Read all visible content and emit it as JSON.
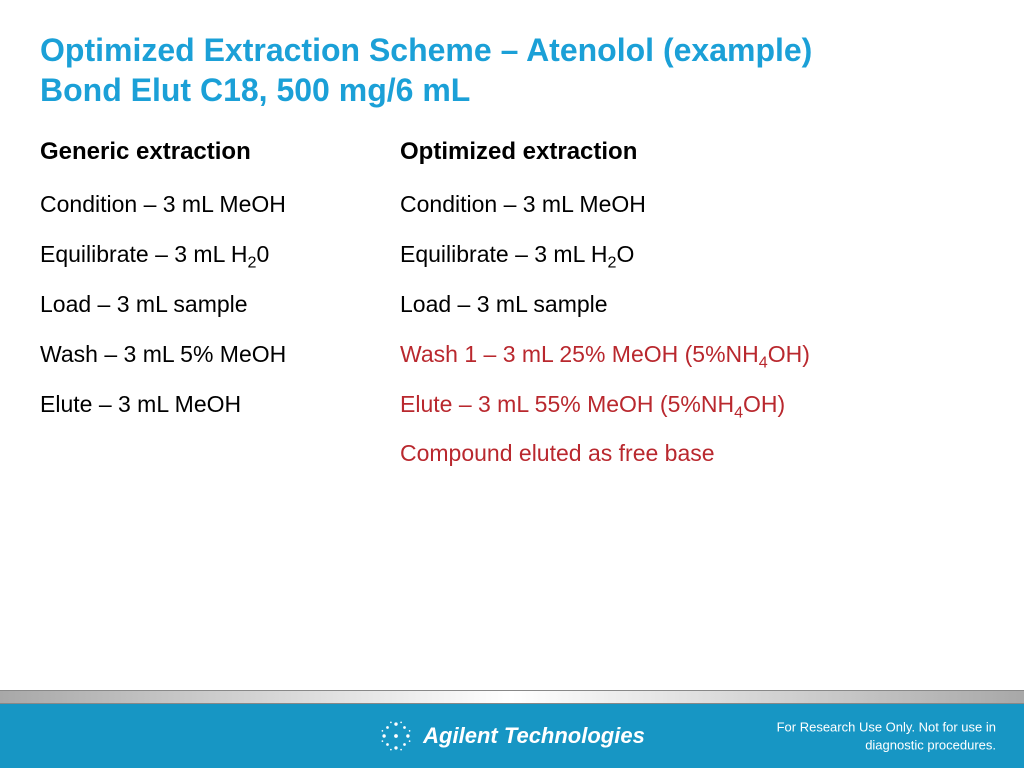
{
  "title_line1": "Optimized Extraction Scheme – Atenolol (example)",
  "title_line2": "Bond Elut C18, 500 mg/6 mL",
  "columns": {
    "left": {
      "heading": "Generic extraction",
      "steps": [
        {
          "parts": [
            "Condition – 3 mL MeOH"
          ],
          "highlight": false
        },
        {
          "parts": [
            "Equilibrate – 3 mL H",
            {
              "sub": "2"
            },
            "0"
          ],
          "highlight": false
        },
        {
          "parts": [
            "Load – 3 mL sample"
          ],
          "highlight": false
        },
        {
          "parts": [
            "Wash – 3 mL 5% MeOH"
          ],
          "highlight": false
        },
        {
          "parts": [
            "Elute – 3 mL MeOH"
          ],
          "highlight": false
        }
      ]
    },
    "right": {
      "heading": "Optimized extraction",
      "steps": [
        {
          "parts": [
            "Condition – 3 mL MeOH"
          ],
          "highlight": false
        },
        {
          "parts": [
            "Equilibrate – 3 mL H",
            {
              "sub": "2"
            },
            "O"
          ],
          "highlight": false
        },
        {
          "parts": [
            "Load – 3 mL sample"
          ],
          "highlight": false
        },
        {
          "parts": [
            "Wash 1 – 3 mL 25% MeOH (5%NH",
            {
              "sub": "4"
            },
            "OH)"
          ],
          "highlight": true
        },
        {
          "parts": [
            "Elute – 3 mL 55% MeOH (5%NH",
            {
              "sub": "4"
            },
            "OH)"
          ],
          "highlight": true
        },
        {
          "parts": [
            "Compound eluted as free base"
          ],
          "highlight": true
        }
      ]
    }
  },
  "footer": {
    "logo_text": "Agilent Technologies",
    "disclaimer_line1": "For Research Use Only.  Not for use in",
    "disclaimer_line2": "diagnostic procedures."
  },
  "colors": {
    "title": "#1ba0d7",
    "body_text": "#000000",
    "highlight_text": "#b9282e",
    "footer_bg": "#1796c4",
    "footer_text": "#ffffff",
    "background": "#ffffff"
  }
}
